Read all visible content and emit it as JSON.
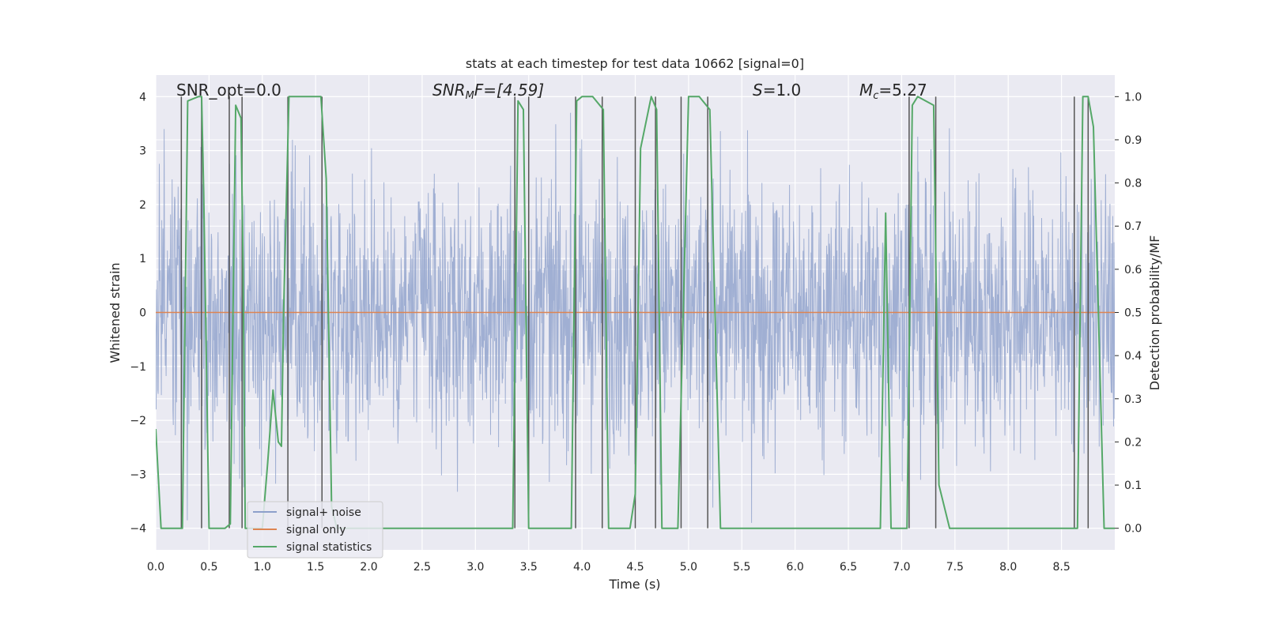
{
  "chart_data": {
    "type": "line",
    "title": "stats at each timestep for test data 10662 [signal=0]",
    "xlabel": "Time (s)",
    "ylabel": "Whitened strain",
    "y2label": "Detection probability/MF",
    "xlim": [
      0.0,
      9.0
    ],
    "ylim": [
      -4.4,
      4.4
    ],
    "y2lim": [
      -0.05,
      1.05
    ],
    "x_ticks": [
      "0.0",
      "0.5",
      "1.0",
      "1.5",
      "2.0",
      "2.5",
      "3.0",
      "3.5",
      "4.0",
      "4.5",
      "5.0",
      "5.5",
      "6.0",
      "6.5",
      "7.0",
      "7.5",
      "8.0",
      "8.5"
    ],
    "y_ticks": [
      "−4",
      "−3",
      "−2",
      "−1",
      "0",
      "1",
      "2",
      "3",
      "4"
    ],
    "y2_ticks": [
      "0.0",
      "0.1",
      "0.2",
      "0.3",
      "0.4",
      "0.5",
      "0.6",
      "0.7",
      "0.8",
      "0.9",
      "1.0"
    ],
    "grid": true,
    "legend_position": "lower-left",
    "annotations": {
      "snr_opt": "SNR_opt=0.0",
      "snr_mf_main": "SNR",
      "snr_mf_sub": "M",
      "snr_mf_rest": "F=[4.59]",
      "s_label": "S",
      "s_rest": "=1.0",
      "mc_main": "M",
      "mc_sub": "c",
      "mc_rest": "=5.27"
    },
    "series": [
      {
        "name": "signal+ noise",
        "color": "#8da0cb",
        "envelope": {
          "min": -3.9,
          "max": 3.7,
          "typical_abs": 2.3
        }
      },
      {
        "name": "signal only",
        "color": "#dd8452",
        "x": [
          0.0,
          9.0
        ],
        "y": [
          0.0,
          0.0
        ]
      },
      {
        "name": "signal statistics",
        "color": "#55a868",
        "axis": "right",
        "x": [
          0.0,
          0.05,
          0.25,
          0.3,
          0.4,
          0.43,
          0.45,
          0.5,
          0.52,
          0.65,
          0.7,
          0.75,
          0.8,
          0.82,
          0.84,
          0.9,
          0.95,
          1.0,
          1.05,
          1.1,
          1.15,
          1.18,
          1.2,
          1.25,
          1.3,
          1.35,
          1.55,
          1.6,
          1.65,
          1.7,
          3.3,
          3.35,
          3.4,
          3.45,
          3.5,
          3.55,
          3.9,
          3.95,
          4.0,
          4.1,
          4.2,
          4.25,
          4.45,
          4.5,
          4.55,
          4.65,
          4.7,
          4.75,
          4.85,
          4.9,
          5.0,
          5.1,
          5.2,
          5.3,
          6.8,
          6.85,
          6.9,
          7.05,
          7.1,
          7.15,
          7.3,
          7.35,
          7.45,
          8.6,
          8.65,
          8.7,
          8.75,
          8.8,
          8.9,
          9.0
        ],
        "y": [
          0.23,
          0.0,
          0.0,
          0.99,
          1.0,
          1.0,
          0.78,
          0.0,
          0.0,
          0.0,
          0.01,
          0.98,
          0.95,
          0.6,
          0.0,
          0.0,
          0.0,
          0.0,
          0.15,
          0.32,
          0.2,
          0.19,
          0.5,
          1.0,
          1.0,
          1.0,
          1.0,
          0.81,
          0.05,
          0.0,
          0.0,
          0.0,
          0.99,
          0.97,
          0.0,
          0.0,
          0.0,
          0.99,
          1.0,
          1.0,
          0.97,
          0.0,
          0.0,
          0.08,
          0.88,
          1.0,
          0.97,
          0.0,
          0.0,
          0.0,
          1.0,
          1.0,
          0.97,
          0.0,
          0.0,
          0.73,
          0.0,
          0.0,
          0.98,
          1.0,
          0.98,
          0.1,
          0.0,
          0.0,
          0.0,
          1.0,
          1.0,
          0.93,
          0.0,
          0.0
        ]
      }
    ],
    "markers": {
      "color": "#555555",
      "x": [
        0.24,
        0.43,
        0.69,
        0.81,
        1.24,
        1.56,
        3.37,
        3.5,
        3.94,
        4.19,
        4.5,
        4.69,
        4.93,
        5.18,
        7.07,
        7.32,
        8.62,
        8.75
      ]
    }
  }
}
